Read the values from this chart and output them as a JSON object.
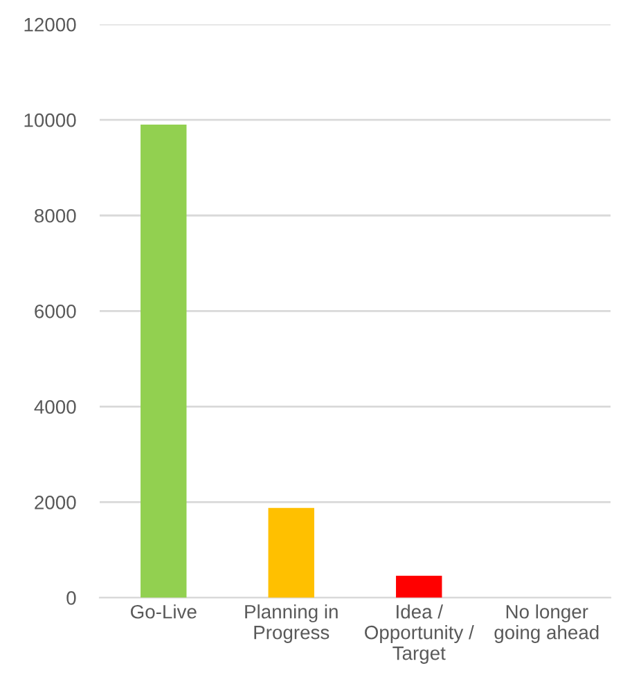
{
  "chart_data": {
    "type": "bar",
    "categories": [
      "Go-Live",
      "Planning in Progress",
      "Idea / Opportunity / Target",
      "No longer going ahead"
    ],
    "values": [
      9900,
      1880,
      460,
      0
    ],
    "colors": [
      "#92d050",
      "#ffc000",
      "#ff0000",
      "#7f7f7f"
    ],
    "ylim": [
      0,
      12000
    ],
    "yticks": [
      0,
      2000,
      4000,
      6000,
      8000,
      10000,
      12000
    ],
    "grid": "y"
  }
}
